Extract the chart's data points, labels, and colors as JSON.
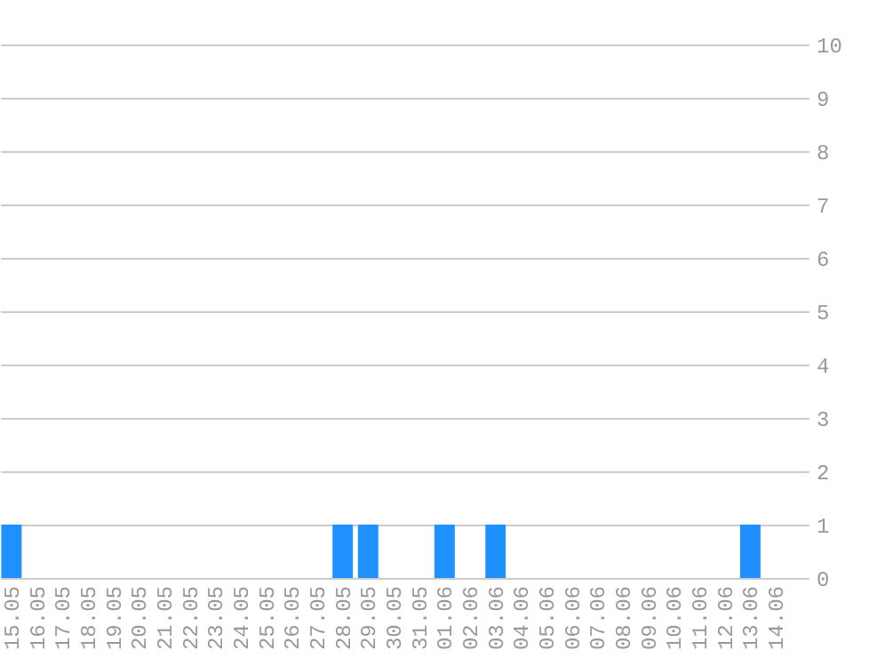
{
  "chart_data": {
    "type": "bar",
    "categories": [
      "15.05",
      "16.05",
      "17.05",
      "18.05",
      "19.05",
      "20.05",
      "21.05",
      "22.05",
      "23.05",
      "24.05",
      "25.05",
      "26.05",
      "27.05",
      "28.05",
      "29.05",
      "30.05",
      "31.05",
      "01.06",
      "02.06",
      "03.06",
      "04.06",
      "05.06",
      "06.06",
      "07.06",
      "08.06",
      "09.06",
      "10.06",
      "11.06",
      "12.06",
      "13.06",
      "14.06"
    ],
    "values": [
      1,
      0,
      0,
      0,
      0,
      0,
      0,
      0,
      0,
      0,
      0,
      0,
      0,
      1,
      1,
      0,
      0,
      1,
      0,
      1,
      0,
      0,
      0,
      0,
      0,
      0,
      0,
      0,
      0,
      1,
      0
    ],
    "color": "#1e90ff",
    "ylim": [
      0,
      10
    ],
    "yticks": [
      0,
      1,
      2,
      3,
      4,
      5,
      6,
      7,
      8,
      9,
      10
    ],
    "grid": "y"
  }
}
